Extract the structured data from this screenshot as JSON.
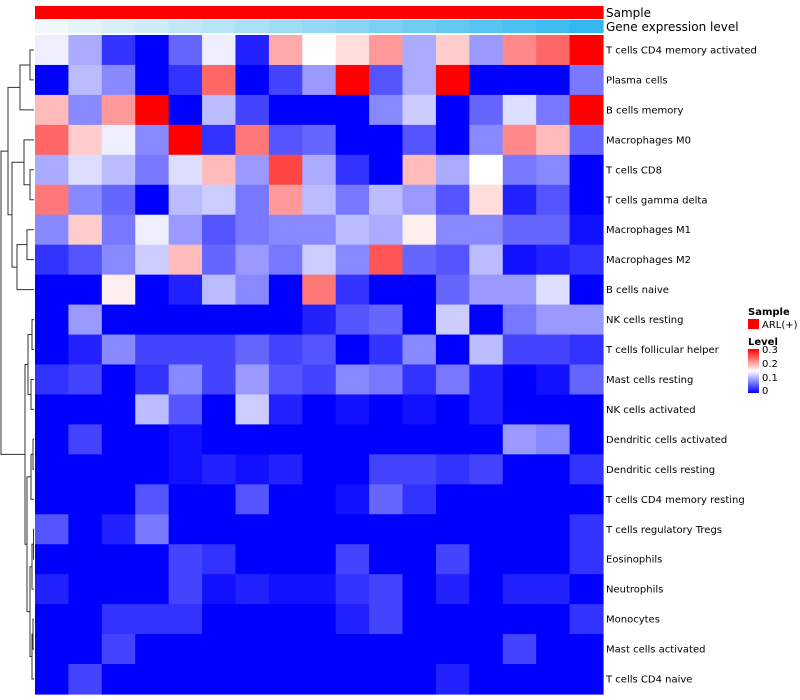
{
  "chart_data": {
    "type": "heatmap",
    "title": "",
    "annotations": [
      {
        "name": "Sample",
        "legend_entries": [
          {
            "label": "ARL(+)",
            "color": "#ff0000"
          }
        ]
      },
      {
        "name": "Gene expression level",
        "gradient": [
          "#f0f8fb",
          "#33b7ee"
        ]
      }
    ],
    "row_labels": [
      "T cells CD4 memory activated",
      "Plasma cells",
      "B cells memory",
      "Macrophages M0",
      "T cells CD8",
      "T cells gamma delta",
      "Macrophages M1",
      "Macrophages M2",
      "B cells naive",
      "NK cells resting",
      "T cells follicular helper",
      "Mast cells resting",
      "NK cells activated",
      "Dendritic cells activated",
      "Dendritic cells resting",
      "T cells CD4 memory resting",
      "T cells regulatory  Tregs",
      "Eosinophils",
      "Neutrophils",
      "Monocytes",
      "Mast cells activated",
      "T cells CD4 naive"
    ],
    "n_columns": 17,
    "color_scale": {
      "min": 0,
      "max": 0.3,
      "colors": [
        "#0000ff",
        "#ffffff",
        "#ff0000"
      ]
    },
    "values": [
      [
        0.14,
        0.1,
        0.03,
        0.0,
        0.06,
        0.14,
        0.02,
        0.2,
        0.15,
        0.17,
        0.21,
        0.1,
        0.18,
        0.09,
        0.22,
        0.24,
        0.3
      ],
      [
        0.0,
        0.11,
        0.08,
        0.0,
        0.03,
        0.24,
        0.0,
        0.04,
        0.09,
        0.3,
        0.05,
        0.1,
        0.3,
        0.0,
        0.0,
        0.0,
        0.07
      ],
      [
        0.19,
        0.08,
        0.21,
        0.3,
        0.0,
        0.11,
        0.04,
        0.0,
        0.0,
        0.0,
        0.08,
        0.12,
        0.0,
        0.06,
        0.13,
        0.07,
        0.3
      ],
      [
        0.24,
        0.18,
        0.14,
        0.08,
        0.3,
        0.03,
        0.23,
        0.05,
        0.06,
        0.0,
        0.0,
        0.05,
        0.0,
        0.08,
        0.22,
        0.19,
        0.06
      ],
      [
        0.1,
        0.13,
        0.11,
        0.07,
        0.13,
        0.19,
        0.09,
        0.26,
        0.1,
        0.03,
        0.0,
        0.19,
        0.1,
        0.15,
        0.07,
        0.08,
        0.0
      ],
      [
        0.23,
        0.08,
        0.06,
        0.0,
        0.11,
        0.12,
        0.07,
        0.21,
        0.11,
        0.07,
        0.11,
        0.09,
        0.05,
        0.17,
        0.02,
        0.05,
        0.0
      ],
      [
        0.08,
        0.18,
        0.07,
        0.14,
        0.09,
        0.05,
        0.07,
        0.08,
        0.08,
        0.11,
        0.1,
        0.16,
        0.08,
        0.08,
        0.06,
        0.06,
        0.01
      ],
      [
        0.03,
        0.05,
        0.08,
        0.12,
        0.19,
        0.06,
        0.09,
        0.07,
        0.12,
        0.08,
        0.25,
        0.06,
        0.05,
        0.11,
        0.01,
        0.02,
        0.03
      ],
      [
        0.0,
        0.0,
        0.16,
        0.0,
        0.02,
        0.11,
        0.08,
        0.0,
        0.23,
        0.03,
        0.0,
        0.0,
        0.06,
        0.09,
        0.09,
        0.13,
        0.0
      ],
      [
        0.0,
        0.09,
        0.0,
        0.0,
        0.0,
        0.0,
        0.0,
        0.0,
        0.02,
        0.05,
        0.06,
        0.0,
        0.12,
        0.0,
        0.07,
        0.09,
        0.09
      ],
      [
        0.0,
        0.02,
        0.08,
        0.04,
        0.04,
        0.04,
        0.06,
        0.04,
        0.05,
        0.0,
        0.03,
        0.08,
        0.0,
        0.11,
        0.04,
        0.04,
        0.03
      ],
      [
        0.03,
        0.04,
        0.0,
        0.03,
        0.08,
        0.04,
        0.09,
        0.05,
        0.04,
        0.08,
        0.07,
        0.03,
        0.07,
        0.02,
        0.0,
        0.01,
        0.06
      ],
      [
        0.0,
        0.0,
        0.0,
        0.11,
        0.05,
        0.0,
        0.12,
        0.02,
        0.0,
        0.01,
        0.0,
        0.01,
        0.0,
        0.02,
        0.0,
        0.0,
        0.0
      ],
      [
        0.0,
        0.04,
        0.0,
        0.0,
        0.01,
        0.0,
        0.0,
        0.0,
        0.0,
        0.0,
        0.0,
        0.0,
        0.0,
        0.0,
        0.09,
        0.08,
        0.0
      ],
      [
        0.0,
        0.0,
        0.0,
        0.0,
        0.01,
        0.02,
        0.01,
        0.02,
        0.0,
        0.0,
        0.04,
        0.04,
        0.03,
        0.04,
        0.0,
        0.0,
        0.03
      ],
      [
        0.0,
        0.0,
        0.0,
        0.05,
        0.0,
        0.0,
        0.05,
        0.0,
        0.0,
        0.01,
        0.06,
        0.03,
        0.0,
        0.0,
        0.0,
        0.0,
        0.0
      ],
      [
        0.05,
        0.0,
        0.02,
        0.07,
        0.0,
        0.0,
        0.0,
        0.0,
        0.0,
        0.0,
        0.0,
        0.0,
        0.0,
        0.0,
        0.0,
        0.0,
        0.03
      ],
      [
        0.0,
        0.0,
        0.0,
        0.0,
        0.04,
        0.03,
        0.0,
        0.0,
        0.0,
        0.04,
        0.0,
        0.0,
        0.04,
        0.0,
        0.0,
        0.0,
        0.03
      ],
      [
        0.02,
        0.0,
        0.0,
        0.0,
        0.04,
        0.01,
        0.02,
        0.01,
        0.01,
        0.03,
        0.04,
        0.0,
        0.02,
        0.0,
        0.02,
        0.02,
        0.0
      ],
      [
        0.0,
        0.0,
        0.03,
        0.03,
        0.03,
        0.0,
        0.0,
        0.0,
        0.0,
        0.02,
        0.04,
        0.0,
        0.0,
        0.0,
        0.0,
        0.0,
        0.03
      ],
      [
        0.0,
        0.0,
        0.04,
        0.0,
        0.0,
        0.0,
        0.0,
        0.0,
        0.0,
        0.0,
        0.0,
        0.0,
        0.0,
        0.0,
        0.04,
        0.0,
        0.0
      ],
      [
        0.0,
        0.04,
        0.0,
        0.0,
        0.0,
        0.0,
        0.0,
        0.0,
        0.0,
        0.0,
        0.0,
        0.0,
        0.02,
        0.0,
        0.0,
        0.0,
        0.0
      ]
    ],
    "legends": {
      "sample_title": "Sample",
      "sample_entry": "ARL(+)",
      "level_title": "Level",
      "level_ticks": [
        "0.3",
        "0.2",
        "0.1",
        "0"
      ]
    }
  }
}
